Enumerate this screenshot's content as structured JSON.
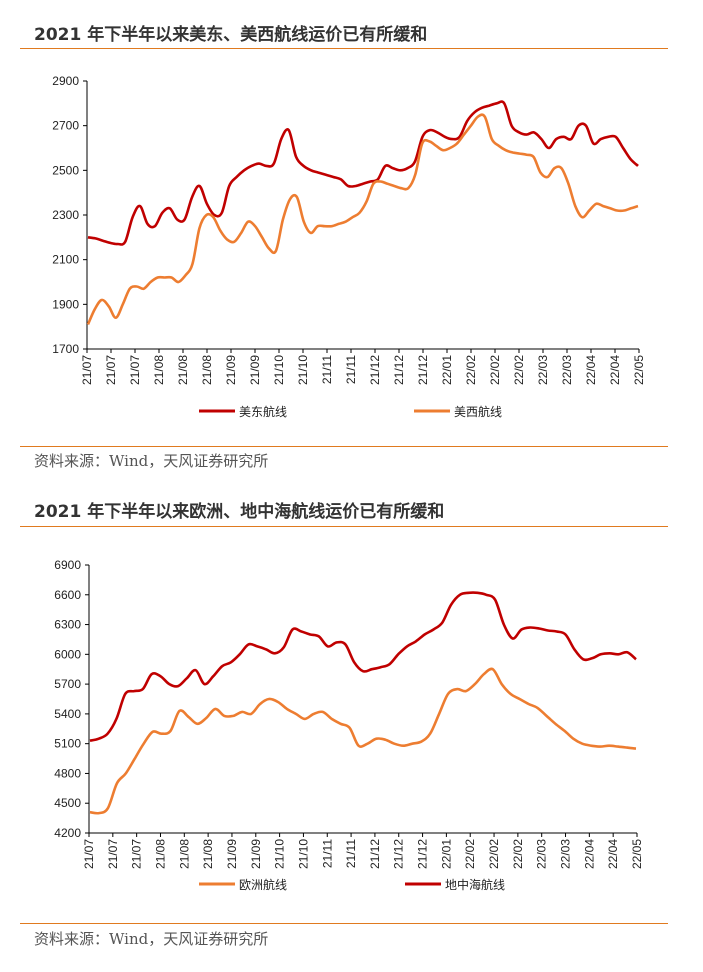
{
  "colors": {
    "accent": "#e07a1f",
    "dark_red": "#c00000",
    "orange": "#ed7d31"
  },
  "chart_data": [
    {
      "type": "line",
      "title": "2021 年下半年以来美东、美西航线运价已有所缓和",
      "source": "资料来源：Wind，天风证券研究所",
      "ylim": [
        1700,
        2900
      ],
      "yticks": [
        1700,
        1900,
        2100,
        2300,
        2500,
        2700,
        2900
      ],
      "xticks": [
        "21/07",
        "21/07",
        "21/07",
        "21/08",
        "21/08",
        "21/08",
        "21/09",
        "21/09",
        "21/10",
        "21/10",
        "21/11",
        "21/11",
        "21/12",
        "21/12",
        "21/12",
        "22/01",
        "22/02",
        "22/02",
        "22/02",
        "22/03",
        "22/03",
        "22/04",
        "22/04",
        "22/05"
      ],
      "series": [
        {
          "name": "美东航线",
          "color": "#c00000",
          "values": [
            2200,
            2195,
            2185,
            2175,
            2170,
            2180,
            2290,
            2340,
            2260,
            2250,
            2310,
            2330,
            2280,
            2280,
            2380,
            2430,
            2350,
            2300,
            2310,
            2430,
            2470,
            2500,
            2520,
            2530,
            2520,
            2530,
            2640,
            2680,
            2560,
            2520,
            2500,
            2490,
            2480,
            2470,
            2460,
            2430,
            2430,
            2440,
            2450,
            2460,
            2520,
            2510,
            2500,
            2510,
            2540,
            2650,
            2680,
            2670,
            2650,
            2640,
            2650,
            2720,
            2760,
            2780,
            2790,
            2800,
            2800,
            2700,
            2670,
            2660,
            2670,
            2640,
            2600,
            2640,
            2650,
            2640,
            2700,
            2700,
            2620,
            2640,
            2650,
            2650,
            2600,
            2550,
            2520
          ]
        },
        {
          "name": "美西航线",
          "color": "#ed7d31",
          "values": [
            1810,
            1880,
            1920,
            1890,
            1840,
            1900,
            1970,
            1980,
            1970,
            2000,
            2020,
            2020,
            2020,
            2000,
            2030,
            2080,
            2240,
            2300,
            2290,
            2230,
            2190,
            2180,
            2220,
            2270,
            2250,
            2200,
            2150,
            2140,
            2280,
            2370,
            2380,
            2270,
            2220,
            2250,
            2250,
            2250,
            2260,
            2270,
            2290,
            2310,
            2360,
            2440,
            2450,
            2440,
            2430,
            2420,
            2420,
            2480,
            2620,
            2630,
            2610,
            2590,
            2600,
            2620,
            2660,
            2700,
            2740,
            2740,
            2640,
            2610,
            2590,
            2580,
            2575,
            2570,
            2560,
            2490,
            2470,
            2510,
            2510,
            2440,
            2340,
            2290,
            2320,
            2350,
            2340,
            2330,
            2320,
            2320,
            2330,
            2340
          ]
        }
      ]
    },
    {
      "type": "line",
      "title": "2021 年下半年以来欧洲、地中海航线运价已有所缓和",
      "source": "资料来源：Wind，天风证券研究所",
      "ylim": [
        4200,
        6900
      ],
      "yticks": [
        4200,
        4500,
        4800,
        5100,
        5400,
        5700,
        6000,
        6300,
        6600,
        6900
      ],
      "xticks": [
        "21/07",
        "21/07",
        "21/07",
        "21/08",
        "21/08",
        "21/08",
        "21/09",
        "21/09",
        "21/10",
        "21/10",
        "21/11",
        "21/11",
        "21/12",
        "21/12",
        "21/12",
        "22/01",
        "22/02",
        "22/02",
        "22/02",
        "22/03",
        "22/03",
        "22/04",
        "22/04",
        "22/05"
      ],
      "series": [
        {
          "name": "欧洲航线",
          "color": "#ed7d31",
          "values": [
            4410,
            4400,
            4450,
            4700,
            4800,
            4950,
            5100,
            5220,
            5200,
            5230,
            5430,
            5370,
            5300,
            5360,
            5450,
            5380,
            5380,
            5420,
            5400,
            5500,
            5550,
            5520,
            5450,
            5400,
            5350,
            5400,
            5420,
            5350,
            5300,
            5260,
            5080,
            5100,
            5150,
            5140,
            5100,
            5080,
            5100,
            5120,
            5200,
            5400,
            5600,
            5650,
            5630,
            5700,
            5800,
            5850,
            5700,
            5600,
            5550,
            5500,
            5460,
            5380,
            5300,
            5230,
            5150,
            5100,
            5080,
            5070,
            5080,
            5070,
            5060,
            5050
          ]
        },
        {
          "name": "地中海航线",
          "color": "#c00000",
          "values": [
            5130,
            5150,
            5200,
            5350,
            5600,
            5630,
            5650,
            5800,
            5780,
            5700,
            5680,
            5760,
            5840,
            5700,
            5780,
            5880,
            5920,
            6000,
            6100,
            6080,
            6050,
            6010,
            6070,
            6250,
            6230,
            6200,
            6180,
            6080,
            6120,
            6100,
            5920,
            5830,
            5850,
            5870,
            5900,
            6000,
            6080,
            6130,
            6200,
            6250,
            6320,
            6500,
            6600,
            6620,
            6620,
            6600,
            6550,
            6300,
            6160,
            6250,
            6270,
            6260,
            6240,
            6230,
            6200,
            6050,
            5950,
            5960,
            6000,
            6010,
            6000,
            6020,
            5950
          ]
        }
      ]
    }
  ]
}
